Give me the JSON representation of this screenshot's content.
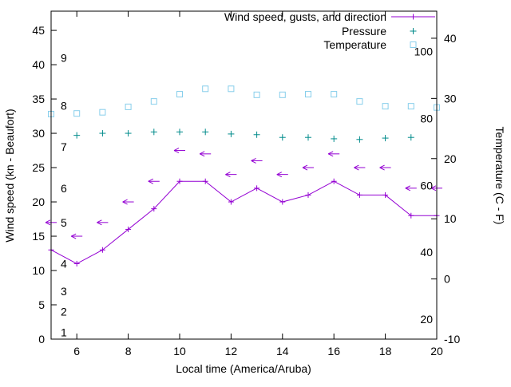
{
  "chart_data": {
    "type": "line",
    "xlabel": "Local time (America/Aruba)",
    "ylabel_left": "Wind speed (kn - Beaufort)",
    "ylabel_right": "Temperature (C - F)",
    "x_range": [
      5,
      20
    ],
    "left_range": [
      0,
      47.8
    ],
    "right_range": [
      -10,
      44.5
    ],
    "x_ticks": [
      6,
      8,
      10,
      12,
      14,
      16,
      18,
      20
    ],
    "left_ticks": [
      0,
      5,
      10,
      15,
      20,
      25,
      30,
      35,
      40,
      45
    ],
    "right_ticks": [
      -10,
      0,
      10,
      20,
      30,
      40
    ],
    "beaufort_scale_labels": [
      {
        "text": "1",
        "kn": 1
      },
      {
        "text": "2",
        "kn": 4
      },
      {
        "text": "3",
        "kn": 7
      },
      {
        "text": "4",
        "kn": 11
      },
      {
        "text": "5",
        "kn": 17
      },
      {
        "text": "6",
        "kn": 22
      },
      {
        "text": "7",
        "kn": 28
      },
      {
        "text": "8",
        "kn": 34
      },
      {
        "text": "9",
        "kn": 41
      }
    ],
    "fahrenheit_scale_labels": [
      {
        "text": "20",
        "f": 20
      },
      {
        "text": "40",
        "f": 40
      },
      {
        "text": "60",
        "f": 60
      },
      {
        "text": "80",
        "f": 80
      },
      {
        "text": "100",
        "f": 100
      }
    ],
    "x": [
      5,
      6,
      7,
      8,
      9,
      10,
      11,
      12,
      13,
      14,
      15,
      16,
      17,
      18,
      19,
      20
    ],
    "series": [
      {
        "name": "Wind speed, gusts, and direction",
        "type": "linespoints",
        "marker": "plus",
        "color": "#9400d3",
        "axis": "left",
        "values": [
          13,
          11,
          13,
          16,
          19,
          23,
          23,
          20,
          22,
          20,
          21,
          23,
          21,
          21,
          18,
          18
        ]
      },
      {
        "name": "Wind gusts",
        "type": "vectors",
        "marker": "arrow-left",
        "color": "#9400d3",
        "axis": "left",
        "values": [
          17,
          15,
          17,
          20,
          23,
          27.5,
          27,
          24,
          26,
          24,
          25,
          27,
          25,
          25,
          22,
          22
        ]
      },
      {
        "name": "Pressure",
        "type": "points",
        "marker": "plus",
        "color": "#008b8b",
        "axis": "left",
        "x": [
          6,
          7,
          8,
          9,
          10,
          11,
          12,
          13,
          14,
          15,
          16,
          17,
          18,
          19
        ],
        "values": [
          29.7,
          30.0,
          30.0,
          30.2,
          30.2,
          30.2,
          29.9,
          29.8,
          29.4,
          29.4,
          29.2,
          29.1,
          29.3,
          29.4
        ]
      },
      {
        "name": "Temperature",
        "type": "points",
        "marker": "square-open",
        "color": "#87ceeb",
        "axis": "right",
        "values": [
          27.4,
          27.5,
          27.7,
          28.6,
          29.5,
          30.7,
          31.6,
          31.6,
          30.6,
          30.6,
          30.7,
          30.7,
          29.5,
          28.7,
          28.7,
          28.5
        ]
      }
    ],
    "legend": {
      "position": "top-right",
      "entries": [
        "Wind speed, gusts, and direction",
        "Pressure",
        "Temperature"
      ]
    }
  }
}
